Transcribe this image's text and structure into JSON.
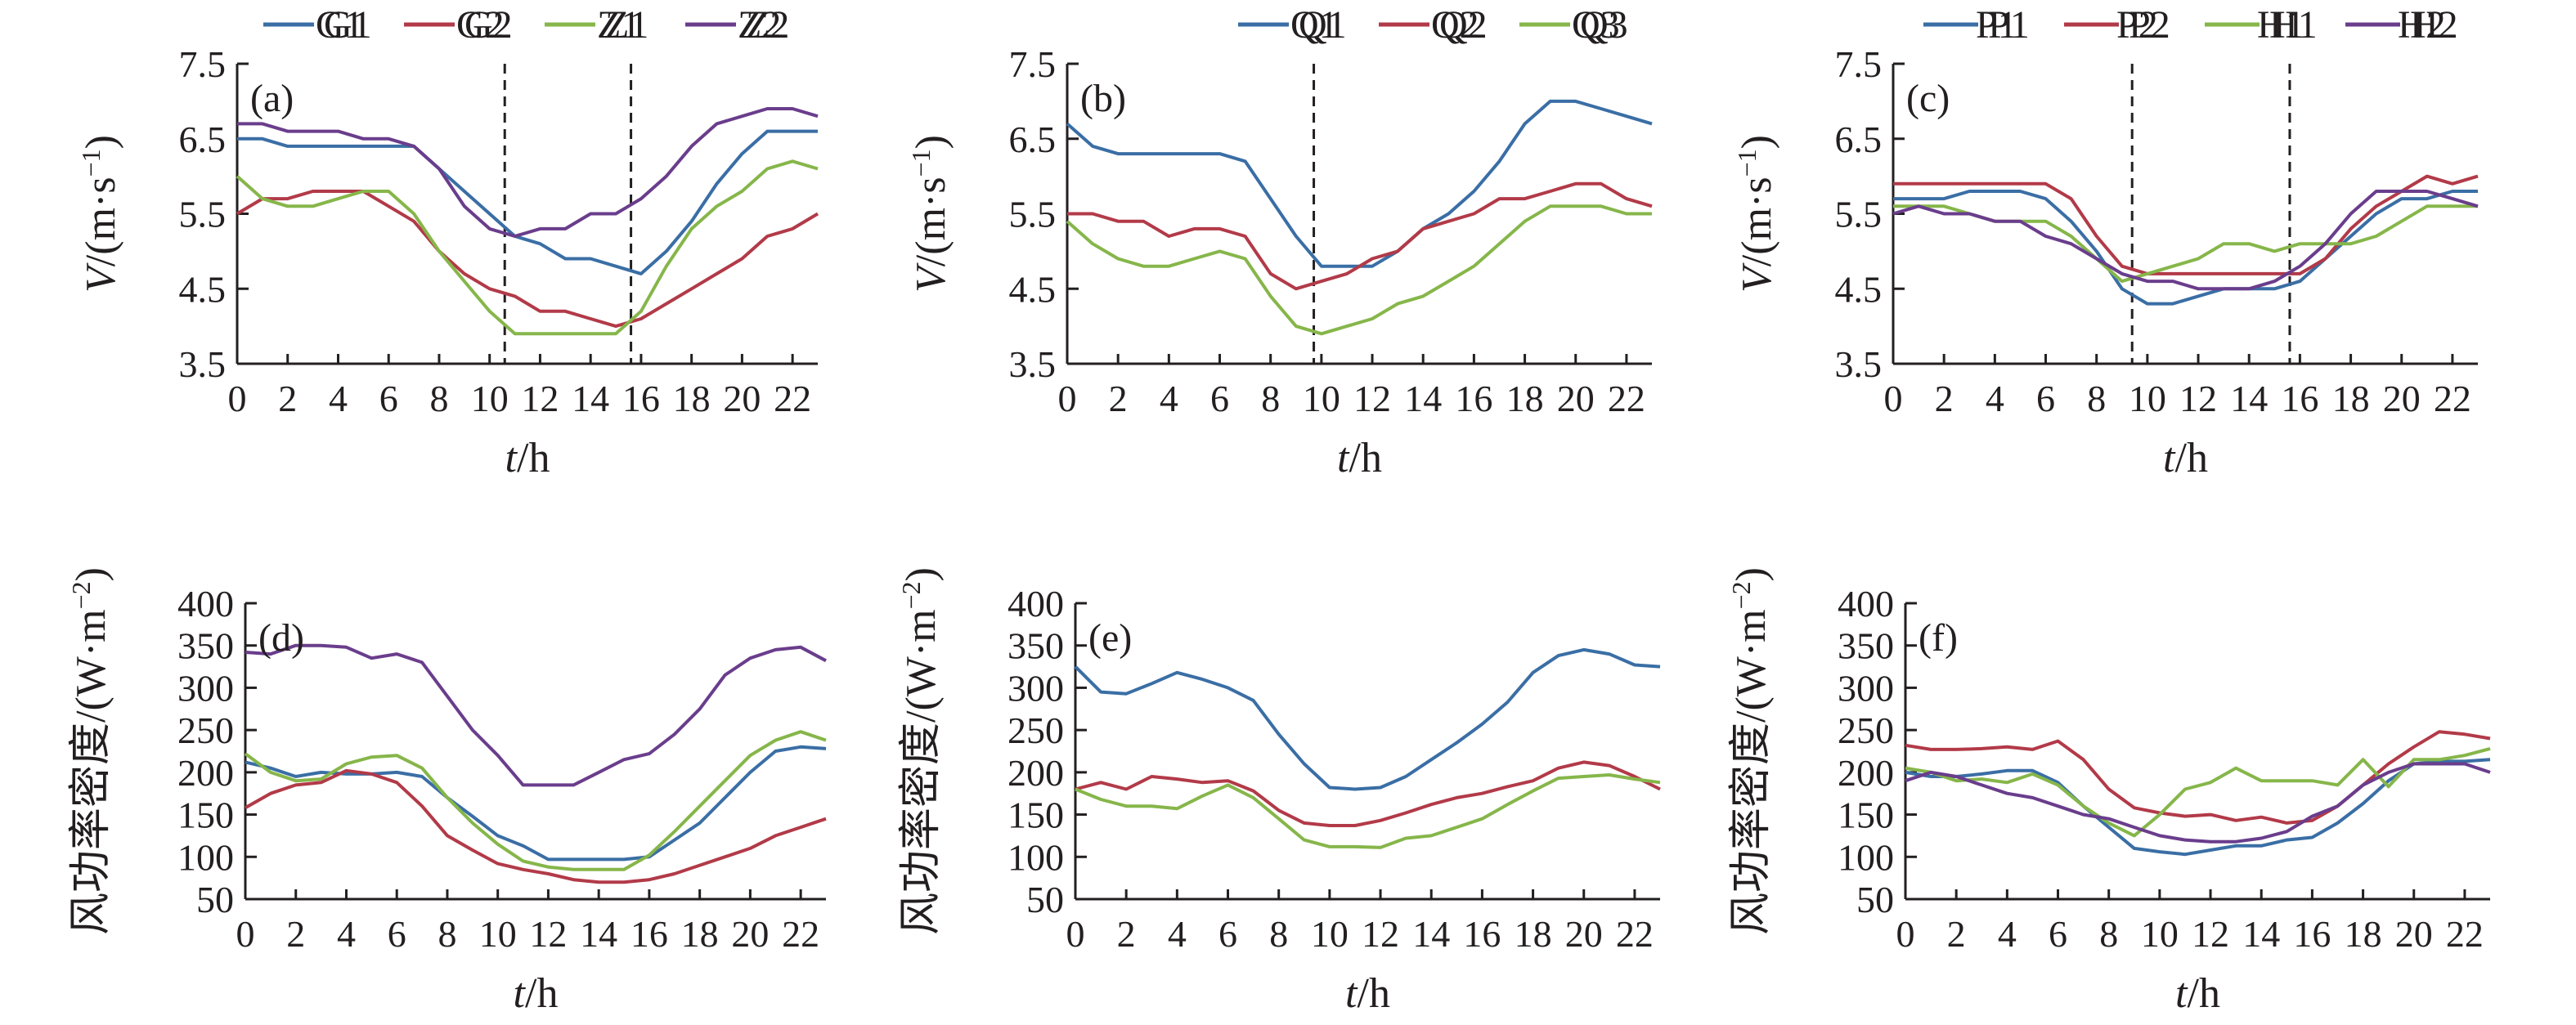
{
  "colors": {
    "blue": "#3a6ea5",
    "red": "#b23a48",
    "green": "#86b64a",
    "purple": "#6a3d8c",
    "axis": "#231f20"
  },
  "chart_data": [
    {
      "id": "a",
      "type": "line",
      "label": "(a)",
      "xlabel": {
        "var": "t",
        "unit": "/h"
      },
      "ylabel": {
        "var": "V",
        "unit": "/(m·s",
        "sup": "−1",
        "close": ")"
      },
      "xlim": [
        0,
        23
      ],
      "ylim": [
        3.5,
        7.5
      ],
      "xticks": [
        0,
        2,
        4,
        6,
        8,
        10,
        12,
        14,
        16,
        18,
        20,
        22
      ],
      "yticks": [
        "3.5",
        "4.5",
        "5.5",
        "6.5",
        "7.5"
      ],
      "vlines": [
        10.6,
        15.6
      ],
      "x": [
        0,
        1,
        2,
        3,
        4,
        5,
        6,
        7,
        8,
        9,
        10,
        11,
        12,
        13,
        14,
        15,
        16,
        17,
        18,
        19,
        20,
        21,
        22,
        23
      ],
      "series": [
        {
          "name": "G1",
          "color": "blue",
          "values": [
            6.5,
            6.5,
            6.4,
            6.4,
            6.4,
            6.4,
            6.4,
            6.4,
            6.1,
            5.8,
            5.5,
            5.2,
            5.1,
            4.9,
            4.9,
            4.8,
            4.7,
            5.0,
            5.4,
            5.9,
            6.3,
            6.6,
            6.6,
            6.6
          ]
        },
        {
          "name": "G2",
          "color": "red",
          "values": [
            5.5,
            5.7,
            5.7,
            5.8,
            5.8,
            5.8,
            5.6,
            5.4,
            5.0,
            4.7,
            4.5,
            4.4,
            4.2,
            4.2,
            4.1,
            4.0,
            4.1,
            4.3,
            4.5,
            4.7,
            4.9,
            5.2,
            5.3,
            5.5
          ]
        },
        {
          "name": "Z1",
          "color": "green",
          "values": [
            6.0,
            5.7,
            5.6,
            5.6,
            5.7,
            5.8,
            5.8,
            5.5,
            5.0,
            4.6,
            4.2,
            3.9,
            3.9,
            3.9,
            3.9,
            3.9,
            4.2,
            4.8,
            5.3,
            5.6,
            5.8,
            6.1,
            6.2,
            6.1
          ]
        },
        {
          "name": "Z2",
          "color": "purple",
          "values": [
            6.7,
            6.7,
            6.6,
            6.6,
            6.6,
            6.5,
            6.5,
            6.4,
            6.1,
            5.6,
            5.3,
            5.2,
            5.3,
            5.3,
            5.5,
            5.5,
            5.7,
            6.0,
            6.4,
            6.7,
            6.8,
            6.9,
            6.9,
            6.8
          ]
        }
      ]
    },
    {
      "id": "b",
      "type": "line",
      "label": "(b)",
      "xlabel": {
        "var": "t",
        "unit": "/h"
      },
      "ylabel": {
        "var": "V",
        "unit": "/(m·s",
        "sup": "−1",
        "close": ")"
      },
      "xlim": [
        0,
        23
      ],
      "ylim": [
        3.5,
        7.5
      ],
      "xticks": [
        0,
        2,
        4,
        6,
        8,
        10,
        12,
        14,
        16,
        18,
        20,
        22
      ],
      "yticks": [
        "3.5",
        "4.5",
        "5.5",
        "6.5",
        "7.5"
      ],
      "vlines": [
        9.7
      ],
      "x": [
        0,
        1,
        2,
        3,
        4,
        5,
        6,
        7,
        8,
        9,
        10,
        11,
        12,
        13,
        14,
        15,
        16,
        17,
        18,
        19,
        20,
        21,
        22,
        23
      ],
      "series": [
        {
          "name": "Q1",
          "color": "blue",
          "values": [
            6.7,
            6.4,
            6.3,
            6.3,
            6.3,
            6.3,
            6.3,
            6.2,
            5.7,
            5.2,
            4.8,
            4.8,
            4.8,
            5.0,
            5.3,
            5.5,
            5.8,
            6.2,
            6.7,
            7.0,
            7.0,
            6.9,
            6.8,
            6.7
          ]
        },
        {
          "name": "Q2",
          "color": "red",
          "values": [
            5.5,
            5.5,
            5.4,
            5.4,
            5.2,
            5.3,
            5.3,
            5.2,
            4.7,
            4.5,
            4.6,
            4.7,
            4.9,
            5.0,
            5.3,
            5.4,
            5.5,
            5.7,
            5.7,
            5.8,
            5.9,
            5.9,
            5.7,
            5.6
          ]
        },
        {
          "name": "Q3",
          "color": "green",
          "values": [
            5.4,
            5.1,
            4.9,
            4.8,
            4.8,
            4.9,
            5.0,
            4.9,
            4.4,
            4.0,
            3.9,
            4.0,
            4.1,
            4.3,
            4.4,
            4.6,
            4.8,
            5.1,
            5.4,
            5.6,
            5.6,
            5.6,
            5.5,
            5.5
          ]
        }
      ]
    },
    {
      "id": "c",
      "type": "line",
      "label": "(c)",
      "xlabel": {
        "var": "t",
        "unit": "/h"
      },
      "ylabel": {
        "var": "V",
        "unit": "/(m·s",
        "sup": "−1",
        "close": ")"
      },
      "xlim": [
        0,
        23
      ],
      "ylim": [
        3.5,
        7.5
      ],
      "xticks": [
        0,
        2,
        4,
        6,
        8,
        10,
        12,
        14,
        16,
        18,
        20,
        22
      ],
      "yticks": [
        "3.5",
        "4.5",
        "5.5",
        "6.5",
        "7.5"
      ],
      "vlines": [
        9.4,
        15.6
      ],
      "x": [
        0,
        1,
        2,
        3,
        4,
        5,
        6,
        7,
        8,
        9,
        10,
        11,
        12,
        13,
        14,
        15,
        16,
        17,
        18,
        19,
        20,
        21,
        22,
        23
      ],
      "series": [
        {
          "name": "P1",
          "color": "blue",
          "values": [
            5.7,
            5.7,
            5.7,
            5.8,
            5.8,
            5.8,
            5.7,
            5.4,
            5.0,
            4.5,
            4.3,
            4.3,
            4.4,
            4.5,
            4.5,
            4.5,
            4.6,
            4.9,
            5.2,
            5.5,
            5.7,
            5.7,
            5.8,
            5.8
          ]
        },
        {
          "name": "P2",
          "color": "red",
          "values": [
            5.9,
            5.9,
            5.9,
            5.9,
            5.9,
            5.9,
            5.9,
            5.7,
            5.2,
            4.8,
            4.7,
            4.7,
            4.7,
            4.7,
            4.7,
            4.7,
            4.7,
            4.9,
            5.3,
            5.6,
            5.8,
            6.0,
            5.9,
            6.0
          ]
        },
        {
          "name": "H1",
          "color": "green",
          "values": [
            5.6,
            5.6,
            5.6,
            5.5,
            5.4,
            5.4,
            5.4,
            5.2,
            4.9,
            4.6,
            4.7,
            4.8,
            4.9,
            5.1,
            5.1,
            5.0,
            5.1,
            5.1,
            5.1,
            5.2,
            5.4,
            5.6,
            5.6,
            5.6
          ]
        },
        {
          "name": "H2",
          "color": "purple",
          "values": [
            5.5,
            5.6,
            5.5,
            5.5,
            5.4,
            5.4,
            5.2,
            5.1,
            4.9,
            4.7,
            4.6,
            4.6,
            4.5,
            4.5,
            4.5,
            4.6,
            4.8,
            5.1,
            5.5,
            5.8,
            5.8,
            5.8,
            5.7,
            5.6
          ]
        }
      ]
    },
    {
      "id": "d",
      "type": "line",
      "label": "(d)",
      "xlabel": {
        "var": "t",
        "unit": "/h"
      },
      "ylabel": {
        "var": "风功率密度",
        "unit": "/(W·m",
        "sup": "−2",
        "close": ")"
      },
      "xlim": [
        0,
        23
      ],
      "ylim": [
        50,
        400
      ],
      "xticks": [
        0,
        2,
        4,
        6,
        8,
        10,
        12,
        14,
        16,
        18,
        20,
        22
      ],
      "yticks": [
        "50",
        "100",
        "150",
        "200",
        "250",
        "300",
        "350",
        "400"
      ],
      "vlines": [],
      "x": [
        0,
        1,
        2,
        3,
        4,
        5,
        6,
        7,
        8,
        9,
        10,
        11,
        12,
        13,
        14,
        15,
        16,
        17,
        18,
        19,
        20,
        21,
        22,
        23
      ],
      "series": [
        {
          "name": "G1",
          "color": "blue",
          "values": [
            212,
            205,
            195,
            200,
            198,
            198,
            200,
            195,
            170,
            148,
            125,
            113,
            97,
            97,
            97,
            97,
            100,
            120,
            140,
            170,
            200,
            225,
            230,
            228
          ]
        },
        {
          "name": "G2",
          "color": "red",
          "values": [
            158,
            175,
            185,
            188,
            202,
            198,
            188,
            160,
            125,
            108,
            92,
            85,
            80,
            73,
            70,
            70,
            73,
            80,
            90,
            100,
            110,
            125,
            135,
            145
          ]
        },
        {
          "name": "Z1",
          "color": "green",
          "values": [
            222,
            200,
            190,
            192,
            210,
            218,
            220,
            205,
            170,
            140,
            115,
            95,
            88,
            85,
            85,
            85,
            102,
            130,
            160,
            190,
            220,
            238,
            248,
            238
          ]
        },
        {
          "name": "Z2",
          "color": "purple",
          "values": [
            342,
            340,
            350,
            350,
            348,
            335,
            340,
            330,
            290,
            250,
            220,
            185,
            185,
            185,
            200,
            215,
            222,
            245,
            275,
            315,
            335,
            345,
            348,
            332
          ]
        }
      ]
    },
    {
      "id": "e",
      "type": "line",
      "label": "(e)",
      "xlabel": {
        "var": "t",
        "unit": "/h"
      },
      "ylabel": {
        "var": "风功率密度",
        "unit": "/(W·m",
        "sup": "−2",
        "close": ")"
      },
      "xlim": [
        0,
        23
      ],
      "ylim": [
        50,
        400
      ],
      "xticks": [
        0,
        2,
        4,
        6,
        8,
        10,
        12,
        14,
        16,
        18,
        20,
        22
      ],
      "yticks": [
        "50",
        "100",
        "150",
        "200",
        "250",
        "300",
        "350",
        "400"
      ],
      "vlines": [],
      "x": [
        0,
        1,
        2,
        3,
        4,
        5,
        6,
        7,
        8,
        9,
        10,
        11,
        12,
        13,
        14,
        15,
        16,
        17,
        18,
        19,
        20,
        21,
        22,
        23
      ],
      "series": [
        {
          "name": "Q1",
          "color": "blue",
          "values": [
            325,
            295,
            293,
            305,
            318,
            310,
            300,
            285,
            245,
            210,
            182,
            180,
            182,
            195,
            215,
            235,
            257,
            283,
            318,
            338,
            345,
            340,
            327,
            325
          ]
        },
        {
          "name": "Q2",
          "color": "red",
          "values": [
            180,
            188,
            180,
            195,
            192,
            188,
            190,
            178,
            155,
            140,
            137,
            137,
            143,
            152,
            162,
            170,
            175,
            183,
            190,
            205,
            212,
            208,
            195,
            180
          ]
        },
        {
          "name": "Q3",
          "color": "green",
          "values": [
            180,
            168,
            160,
            160,
            157,
            172,
            185,
            170,
            145,
            120,
            112,
            112,
            111,
            122,
            125,
            135,
            145,
            162,
            178,
            193,
            195,
            197,
            192,
            188
          ]
        }
      ]
    },
    {
      "id": "f",
      "type": "line",
      "label": "(f)",
      "xlabel": {
        "var": "t",
        "unit": "/h"
      },
      "ylabel": {
        "var": "风功率密度",
        "unit": "/(W·m",
        "sup": "−2",
        "close": ")"
      },
      "xlim": [
        0,
        23
      ],
      "ylim": [
        50,
        400
      ],
      "xticks": [
        0,
        2,
        4,
        6,
        8,
        10,
        12,
        14,
        16,
        18,
        20,
        22
      ],
      "yticks": [
        "50",
        "100",
        "150",
        "200",
        "250",
        "300",
        "350",
        "400"
      ],
      "vlines": [],
      "x": [
        0,
        1,
        2,
        3,
        4,
        5,
        6,
        7,
        8,
        9,
        10,
        11,
        12,
        13,
        14,
        15,
        16,
        17,
        18,
        19,
        20,
        21,
        22,
        23
      ],
      "series": [
        {
          "name": "P1",
          "color": "blue",
          "values": [
            200,
            195,
            195,
            198,
            202,
            202,
            188,
            160,
            135,
            110,
            106,
            103,
            108,
            113,
            113,
            120,
            123,
            140,
            163,
            190,
            210,
            213,
            213,
            215
          ]
        },
        {
          "name": "P2",
          "color": "red",
          "values": [
            232,
            227,
            227,
            228,
            230,
            227,
            237,
            215,
            180,
            158,
            152,
            148,
            150,
            143,
            147,
            140,
            143,
            160,
            185,
            210,
            230,
            248,
            245,
            240
          ]
        },
        {
          "name": "H1",
          "color": "green",
          "values": [
            205,
            200,
            190,
            192,
            188,
            198,
            185,
            160,
            140,
            125,
            150,
            180,
            188,
            205,
            190,
            190,
            190,
            185,
            215,
            183,
            215,
            215,
            220,
            228
          ]
        },
        {
          "name": "H2",
          "color": "purple",
          "values": [
            190,
            200,
            195,
            185,
            175,
            170,
            160,
            150,
            145,
            135,
            125,
            120,
            118,
            118,
            122,
            130,
            148,
            160,
            185,
            200,
            210,
            210,
            210,
            200
          ]
        }
      ]
    }
  ]
}
